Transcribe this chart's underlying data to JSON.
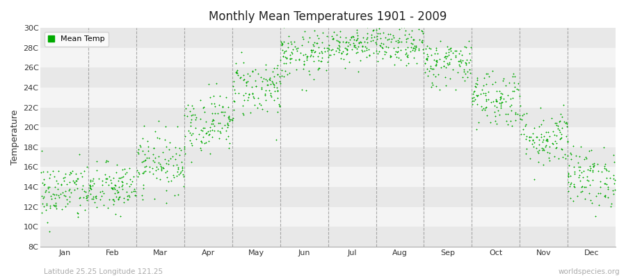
{
  "title": "Monthly Mean Temperatures 1901 - 2009",
  "ylabel": "Temperature",
  "yticks": [
    8,
    10,
    12,
    14,
    16,
    18,
    20,
    22,
    24,
    26,
    28,
    30
  ],
  "ytick_labels": [
    "8C",
    "10C",
    "12C",
    "14C",
    "16C",
    "18C",
    "20C",
    "22C",
    "24C",
    "26C",
    "28C",
    "30C"
  ],
  "ylim": [
    8,
    30
  ],
  "months": [
    "Jan",
    "Feb",
    "Mar",
    "Apr",
    "May",
    "Jun",
    "Jul",
    "Aug",
    "Sep",
    "Oct",
    "Nov",
    "Dec"
  ],
  "dot_color": "#00AA00",
  "dot_size": 3,
  "figure_bg_color": "#FFFFFF",
  "plot_bg_color": "#FFFFFF",
  "band_color_dark": "#E8E8E8",
  "band_color_light": "#F4F4F4",
  "dashed_line_color": "#888888",
  "legend_label": "Mean Temp",
  "bottom_left_text": "Latitude 25.25 Longitude 121.25",
  "bottom_right_text": "worldspecies.org",
  "mean_temps": {
    "Jan": 13.5,
    "Feb": 13.8,
    "Mar": 16.5,
    "Apr": 20.5,
    "May": 24.0,
    "Jun": 27.2,
    "Jul": 28.5,
    "Aug": 28.2,
    "Sep": 26.5,
    "Oct": 23.0,
    "Nov": 19.0,
    "Dec": 15.0
  },
  "std_temps": {
    "Jan": 1.5,
    "Feb": 1.3,
    "Mar": 1.5,
    "Apr": 1.5,
    "May": 1.5,
    "Jun": 1.2,
    "Jul": 1.0,
    "Aug": 1.0,
    "Sep": 1.2,
    "Oct": 1.5,
    "Nov": 1.5,
    "Dec": 1.5
  },
  "n_years": 109,
  "seed": 42
}
